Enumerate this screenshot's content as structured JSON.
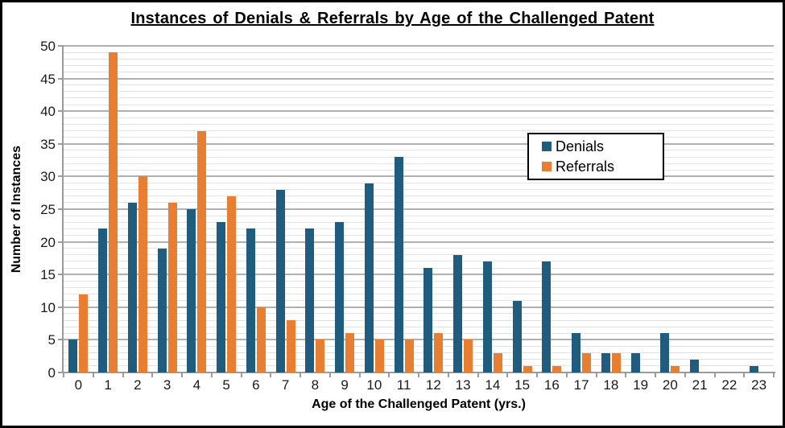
{
  "chart_data": {
    "type": "bar",
    "title": "Instances of Denials & Referrals by Age of the Challenged Patent",
    "xlabel": "Age of the Challenged Patent (yrs.)",
    "ylabel": "Number of Instances",
    "categories": [
      "0",
      "1",
      "2",
      "3",
      "4",
      "5",
      "6",
      "7",
      "8",
      "9",
      "10",
      "11",
      "12",
      "13",
      "14",
      "15",
      "16",
      "17",
      "18",
      "19",
      "20",
      "21",
      "22",
      "23"
    ],
    "series": [
      {
        "name": "Denials",
        "color": "#1F5C7D",
        "values": [
          5,
          22,
          26,
          19,
          25,
          23,
          22,
          28,
          22,
          23,
          29,
          33,
          16,
          18,
          17,
          11,
          17,
          6,
          3,
          3,
          6,
          2,
          0,
          1
        ]
      },
      {
        "name": "Referrals",
        "color": "#E87E31",
        "values": [
          12,
          49,
          30,
          26,
          37,
          27,
          10,
          8,
          5,
          6,
          5,
          5,
          6,
          5,
          3,
          1,
          1,
          3,
          3,
          0,
          1,
          0,
          0,
          0
        ]
      }
    ],
    "ylim": [
      0,
      50
    ],
    "ytick_step": 5,
    "minor_grid_step": 1,
    "grid": true,
    "legend_position": "inside-upper-right",
    "colors": {
      "major_gridline": "#b0b0b0",
      "minor_gridline": "#e3e3e3",
      "axis_line": "#9b9b9b",
      "background": "#ffffff",
      "border": "#000000"
    }
  }
}
